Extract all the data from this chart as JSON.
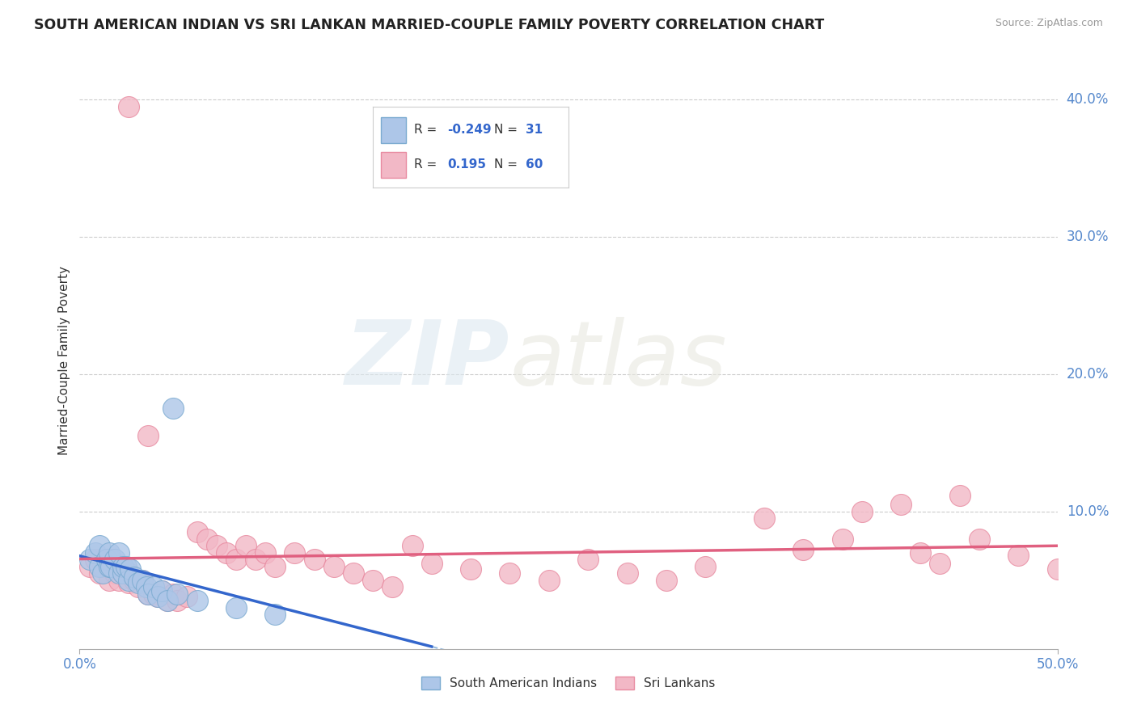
{
  "title": "SOUTH AMERICAN INDIAN VS SRI LANKAN MARRIED-COUPLE FAMILY POVERTY CORRELATION CHART",
  "source": "Source: ZipAtlas.com",
  "ylabel": "Married-Couple Family Poverty",
  "xlim": [
    0.0,
    0.5
  ],
  "ylim": [
    0.0,
    0.42
  ],
  "ytick_positions": [
    0.0,
    0.1,
    0.2,
    0.3,
    0.4
  ],
  "ytick_labels": [
    "",
    "10.0%",
    "20.0%",
    "30.0%",
    "40.0%"
  ],
  "color_blue": "#adc6e8",
  "color_blue_edge": "#7aaad0",
  "color_blue_line": "#3366cc",
  "color_pink": "#f2b8c6",
  "color_pink_edge": "#e88aa0",
  "color_pink_line": "#e06080",
  "color_dashed": "#99bbdd",
  "grid_color": "#cccccc",
  "background": "#ffffff",
  "sa_x": [
    0.005,
    0.008,
    0.01,
    0.01,
    0.012,
    0.014,
    0.015,
    0.015,
    0.016,
    0.018,
    0.02,
    0.02,
    0.022,
    0.022,
    0.024,
    0.025,
    0.026,
    0.028,
    0.03,
    0.032,
    0.034,
    0.035,
    0.038,
    0.04,
    0.042,
    0.045,
    0.048,
    0.05,
    0.06,
    0.08,
    0.1
  ],
  "sa_y": [
    0.065,
    0.07,
    0.06,
    0.075,
    0.055,
    0.065,
    0.06,
    0.07,
    0.06,
    0.065,
    0.055,
    0.07,
    0.055,
    0.06,
    0.06,
    0.05,
    0.058,
    0.052,
    0.048,
    0.05,
    0.045,
    0.04,
    0.045,
    0.038,
    0.042,
    0.035,
    0.175,
    0.04,
    0.035,
    0.03,
    0.025
  ],
  "sl_x": [
    0.005,
    0.008,
    0.01,
    0.012,
    0.015,
    0.016,
    0.018,
    0.02,
    0.02,
    0.022,
    0.025,
    0.025,
    0.025,
    0.028,
    0.03,
    0.032,
    0.035,
    0.035,
    0.038,
    0.04,
    0.042,
    0.045,
    0.048,
    0.05,
    0.055,
    0.06,
    0.065,
    0.07,
    0.075,
    0.08,
    0.085,
    0.09,
    0.095,
    0.1,
    0.11,
    0.12,
    0.13,
    0.14,
    0.15,
    0.16,
    0.17,
    0.18,
    0.2,
    0.22,
    0.24,
    0.26,
    0.28,
    0.3,
    0.32,
    0.35,
    0.37,
    0.39,
    0.4,
    0.42,
    0.43,
    0.44,
    0.45,
    0.46,
    0.48,
    0.5
  ],
  "sl_y": [
    0.06,
    0.065,
    0.055,
    0.06,
    0.05,
    0.065,
    0.055,
    0.05,
    0.06,
    0.055,
    0.048,
    0.055,
    0.395,
    0.05,
    0.045,
    0.05,
    0.04,
    0.155,
    0.04,
    0.038,
    0.042,
    0.035,
    0.04,
    0.035,
    0.038,
    0.085,
    0.08,
    0.075,
    0.07,
    0.065,
    0.075,
    0.065,
    0.07,
    0.06,
    0.07,
    0.065,
    0.06,
    0.055,
    0.05,
    0.045,
    0.075,
    0.062,
    0.058,
    0.055,
    0.05,
    0.065,
    0.055,
    0.05,
    0.06,
    0.095,
    0.072,
    0.08,
    0.1,
    0.105,
    0.07,
    0.062,
    0.112,
    0.08,
    0.068,
    0.058
  ]
}
